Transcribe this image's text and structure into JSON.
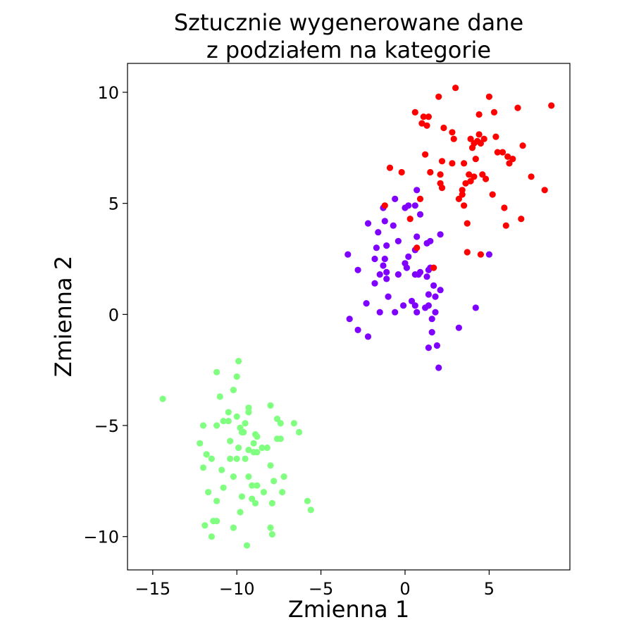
{
  "chart_data": {
    "type": "scatter",
    "title_lines": [
      "Sztucznie wygenerowane dane",
      "z podziałem na kategorie"
    ],
    "xlabel": "Zmienna 1",
    "ylabel": "Zmienna 2",
    "xlim": [
      -16.5,
      9.8
    ],
    "ylim": [
      -11.5,
      11.3
    ],
    "xticks": [
      -15,
      -10,
      -5,
      0,
      5
    ],
    "xtick_labels": [
      "−15",
      "−10",
      "−5",
      "0",
      "5"
    ],
    "yticks": [
      -10,
      -5,
      0,
      5,
      10
    ],
    "ytick_labels": [
      "−10",
      "−5",
      "0",
      "5",
      "10"
    ],
    "grid": false,
    "legend": "none",
    "series": [
      {
        "color": "#80ff80",
        "points": [
          [
            -14.4,
            -3.8
          ],
          [
            -12.2,
            -5.8
          ],
          [
            -12.0,
            -5.0
          ],
          [
            -11.8,
            -6.3
          ],
          [
            -12.0,
            -6.9
          ],
          [
            -11.9,
            -9.5
          ],
          [
            -11.7,
            -8.0
          ],
          [
            -11.5,
            -6.5
          ],
          [
            -11.4,
            -9.3
          ],
          [
            -11.2,
            -9.3
          ],
          [
            -11.5,
            -10.0
          ],
          [
            -11.2,
            -8.4
          ],
          [
            -11.2,
            -5.0
          ],
          [
            -11.2,
            -2.6
          ],
          [
            -11.0,
            -3.7
          ],
          [
            -10.9,
            -7.0
          ],
          [
            -10.8,
            -4.8
          ],
          [
            -10.8,
            -7.8
          ],
          [
            -10.5,
            -4.4
          ],
          [
            -10.5,
            -4.8
          ],
          [
            -10.4,
            -5.7
          ],
          [
            -10.4,
            -6.5
          ],
          [
            -10.2,
            -3.4
          ],
          [
            -10.2,
            -7.3
          ],
          [
            -10.2,
            -9.6
          ],
          [
            -10.0,
            -6.5
          ],
          [
            -10.0,
            -2.8
          ],
          [
            -10.0,
            -4.6
          ],
          [
            -9.9,
            -2.1
          ],
          [
            -9.9,
            -6.0
          ],
          [
            -9.8,
            -8.9
          ],
          [
            -9.8,
            -5.1
          ],
          [
            -9.7,
            -5.3
          ],
          [
            -9.7,
            -8.2
          ],
          [
            -9.6,
            -5.3
          ],
          [
            -9.5,
            -6.5
          ],
          [
            -9.5,
            -4.9
          ],
          [
            -9.3,
            -4.2
          ],
          [
            -9.3,
            -4.4
          ],
          [
            -9.3,
            -7.3
          ],
          [
            -9.3,
            -6.1
          ],
          [
            -9.4,
            -10.4
          ],
          [
            -9.1,
            -7.7
          ],
          [
            -9.1,
            -8.3
          ],
          [
            -9.0,
            -5.8
          ],
          [
            -9.0,
            -6.2
          ],
          [
            -8.9,
            -5.4
          ],
          [
            -8.9,
            -8.5
          ],
          [
            -8.8,
            -6.2
          ],
          [
            -8.8,
            -7.7
          ],
          [
            -8.5,
            -6.0
          ],
          [
            -8.4,
            -8.0
          ],
          [
            -8.2,
            -6.0
          ],
          [
            -8.0,
            -4.1
          ],
          [
            -8.0,
            -6.8
          ],
          [
            -8.0,
            -9.6
          ],
          [
            -7.9,
            -8.5
          ],
          [
            -7.9,
            -9.9
          ],
          [
            -7.8,
            -7.5
          ],
          [
            -7.6,
            -4.7
          ],
          [
            -7.6,
            -5.6
          ],
          [
            -7.4,
            -5.6
          ],
          [
            -7.4,
            -4.9
          ],
          [
            -7.3,
            -8.0
          ],
          [
            -7.2,
            -7.3
          ],
          [
            -6.6,
            -4.9
          ],
          [
            -6.3,
            -5.3
          ],
          [
            -5.8,
            -8.4
          ],
          [
            -5.6,
            -8.8
          ],
          [
            -8.8,
            -5.5
          ]
        ]
      },
      {
        "color": "#8000ff",
        "points": [
          [
            -3.4,
            2.7
          ],
          [
            -3.3,
            -0.2
          ],
          [
            -2.8,
            2.0
          ],
          [
            -2.8,
            -0.7
          ],
          [
            -2.3,
            0.5
          ],
          [
            -2.2,
            4.1
          ],
          [
            -2.2,
            -1.0
          ],
          [
            -1.8,
            2.5
          ],
          [
            -1.8,
            1.4
          ],
          [
            -1.7,
            3.0
          ],
          [
            -1.6,
            3.7
          ],
          [
            -1.5,
            1.8
          ],
          [
            -1.5,
            0.1
          ],
          [
            -1.3,
            4.8
          ],
          [
            -1.3,
            2.2
          ],
          [
            -1.2,
            4.2
          ],
          [
            -1.2,
            2.5
          ],
          [
            -1.1,
            1.6
          ],
          [
            -1.1,
            1.9
          ],
          [
            -1.1,
            3.1
          ],
          [
            -1.0,
            0.8
          ],
          [
            -0.7,
            4.0
          ],
          [
            -0.6,
            5.2
          ],
          [
            -0.6,
            0.1
          ],
          [
            -0.4,
            3.3
          ],
          [
            -0.4,
            1.8
          ],
          [
            -0.1,
            0.4
          ],
          [
            0.0,
            2.3
          ],
          [
            0.0,
            4.8
          ],
          [
            0.1,
            2.1
          ],
          [
            0.2,
            2.6
          ],
          [
            0.2,
            4.9
          ],
          [
            0.4,
            0.6
          ],
          [
            0.6,
            1.8
          ],
          [
            0.6,
            0.4
          ],
          [
            0.6,
            2.9
          ],
          [
            0.6,
            4.9
          ],
          [
            0.7,
            5.6
          ],
          [
            0.7,
            3.5
          ],
          [
            0.7,
            0.1
          ],
          [
            0.8,
            1.8
          ],
          [
            0.9,
            1.9
          ],
          [
            0.9,
            4.5
          ],
          [
            1.2,
            0.3
          ],
          [
            1.3,
            3.2
          ],
          [
            1.3,
            1.7
          ],
          [
            1.4,
            -1.5
          ],
          [
            1.4,
            0.9
          ],
          [
            1.4,
            0.4
          ],
          [
            1.5,
            3.3
          ],
          [
            1.5,
            2.1
          ],
          [
            1.6,
            -0.2
          ],
          [
            1.6,
            -0.8
          ],
          [
            1.7,
            1.3
          ],
          [
            1.8,
            0.8
          ],
          [
            1.8,
            0.1
          ],
          [
            1.9,
            -1.4
          ],
          [
            2.1,
            1.1
          ],
          [
            2.1,
            3.6
          ],
          [
            2.0,
            -2.4
          ],
          [
            3.2,
            -0.6
          ],
          [
            4.2,
            0.3
          ],
          [
            5.0,
            2.7
          ],
          [
            1.4,
            2.0
          ]
        ]
      },
      {
        "color": "#ff0000",
        "points": [
          [
            -1.2,
            4.9
          ],
          [
            -0.9,
            6.6
          ],
          [
            -0.2,
            6.4
          ],
          [
            0.3,
            4.3
          ],
          [
            0.6,
            9.1
          ],
          [
            0.7,
            3.0
          ],
          [
            0.9,
            5.2
          ],
          [
            1.0,
            8.6
          ],
          [
            1.1,
            8.9
          ],
          [
            1.2,
            7.2
          ],
          [
            1.3,
            8.5
          ],
          [
            1.4,
            8.9
          ],
          [
            1.5,
            6.4
          ],
          [
            1.7,
            2.1
          ],
          [
            2.0,
            9.8
          ],
          [
            2.1,
            6.3
          ],
          [
            2.1,
            5.9
          ],
          [
            2.2,
            5.7
          ],
          [
            2.2,
            6.9
          ],
          [
            2.3,
            8.4
          ],
          [
            2.8,
            6.8
          ],
          [
            2.8,
            8.2
          ],
          [
            2.9,
            7.9
          ],
          [
            3.0,
            10.2
          ],
          [
            3.2,
            5.2
          ],
          [
            3.4,
            5.6
          ],
          [
            3.4,
            5.4
          ],
          [
            3.5,
            4.9
          ],
          [
            3.5,
            6.8
          ],
          [
            3.6,
            5.9
          ],
          [
            3.7,
            4.1
          ],
          [
            3.7,
            2.8
          ],
          [
            3.8,
            6.3
          ],
          [
            3.9,
            6.0
          ],
          [
            3.9,
            7.9
          ],
          [
            4.0,
            7.5
          ],
          [
            4.1,
            7.7
          ],
          [
            4.1,
            6.2
          ],
          [
            4.2,
            7.0
          ],
          [
            4.3,
            7.8
          ],
          [
            4.4,
            8.1
          ],
          [
            4.4,
            9.0
          ],
          [
            4.5,
            2.7
          ],
          [
            4.5,
            7.7
          ],
          [
            4.6,
            6.3
          ],
          [
            4.7,
            7.9
          ],
          [
            4.8,
            6.1
          ],
          [
            5.0,
            9.8
          ],
          [
            5.2,
            5.4
          ],
          [
            5.3,
            9.1
          ],
          [
            5.4,
            8.0
          ],
          [
            5.5,
            7.3
          ],
          [
            5.8,
            7.3
          ],
          [
            5.9,
            4.8
          ],
          [
            6.0,
            4.0
          ],
          [
            6.1,
            7.1
          ],
          [
            6.2,
            6.8
          ],
          [
            6.4,
            7.0
          ],
          [
            6.7,
            9.3
          ],
          [
            6.9,
            4.3
          ],
          [
            7.0,
            7.6
          ],
          [
            7.5,
            6.2
          ],
          [
            8.3,
            5.6
          ],
          [
            8.7,
            9.4
          ]
        ]
      }
    ]
  }
}
